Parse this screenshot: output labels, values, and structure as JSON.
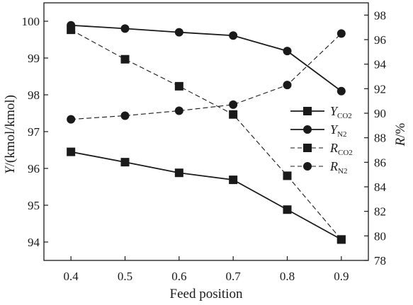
{
  "chart_data": {
    "type": "line",
    "xlabel": "Feed position",
    "ylabel_left": "Y/(kmol/kmol)",
    "ylabel_right": "R/%",
    "x": [
      0.4,
      0.5,
      0.6,
      0.7,
      0.8,
      0.9
    ],
    "x_ticks": [
      "0.4",
      "0.5",
      "0.6",
      "0.7",
      "0.8",
      "0.9"
    ],
    "y_left_range": [
      93.5,
      100.5
    ],
    "y_left_ticks": [
      "94",
      "95",
      "96",
      "97",
      "98",
      "99",
      "100"
    ],
    "y_right_range": [
      78,
      99
    ],
    "y_right_ticks": [
      "78",
      "80",
      "82",
      "84",
      "86",
      "88",
      "90",
      "92",
      "94",
      "96",
      "98"
    ],
    "grid": false,
    "legend_placement": "right-middle",
    "series": [
      {
        "name": "Y_CO2",
        "label_main": "Y",
        "label_sub": "CO2",
        "axis": "left",
        "marker": "square",
        "dash": "solid",
        "values": [
          96.45,
          96.17,
          95.88,
          95.69,
          94.88,
          94.07
        ]
      },
      {
        "name": "Y_N2",
        "label_main": "Y",
        "label_sub": "N2",
        "axis": "left",
        "marker": "circle",
        "dash": "solid",
        "values": [
          99.89,
          99.8,
          99.7,
          99.61,
          99.19,
          98.1
        ]
      },
      {
        "name": "R_CO2",
        "label_main": "R",
        "label_sub": "CO2",
        "axis": "right",
        "marker": "square",
        "dash": "dashed",
        "values": [
          96.8,
          94.4,
          92.2,
          89.9,
          84.9,
          79.7
        ]
      },
      {
        "name": "R_N2",
        "label_main": "R",
        "label_sub": "N2",
        "axis": "right",
        "marker": "circle",
        "dash": "dashed",
        "values": [
          89.5,
          89.8,
          90.2,
          90.7,
          92.3,
          96.5
        ]
      }
    ]
  }
}
